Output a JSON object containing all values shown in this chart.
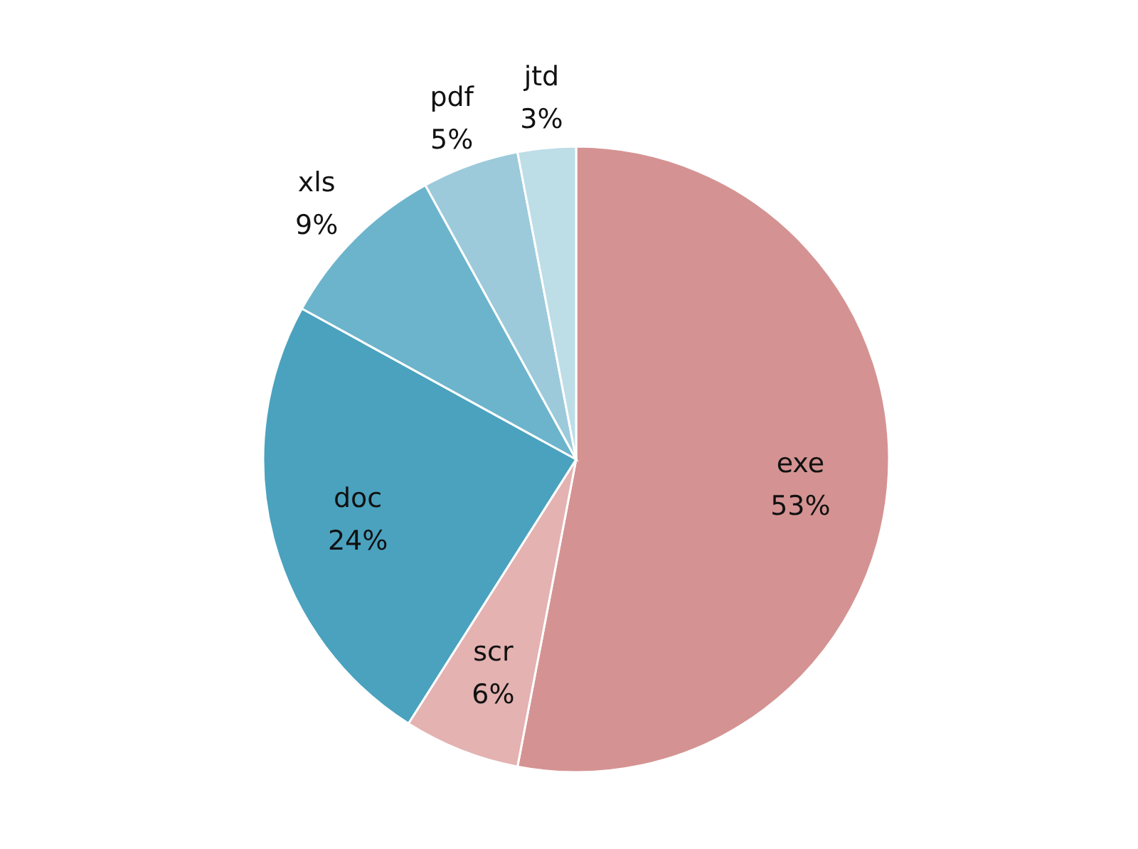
{
  "chart_data": {
    "type": "pie",
    "categories": [
      "exe",
      "scr",
      "doc",
      "xls",
      "pdf",
      "jtd"
    ],
    "values": [
      53,
      6,
      24,
      9,
      5,
      3
    ],
    "colors": [
      "#d49392",
      "#e3b2b1",
      "#4aa2be",
      "#6cb4cc",
      "#9ccadb",
      "#bddde7"
    ],
    "value_labels": [
      "53%",
      "6%",
      "24%",
      "9%",
      "5%",
      "3%"
    ]
  }
}
